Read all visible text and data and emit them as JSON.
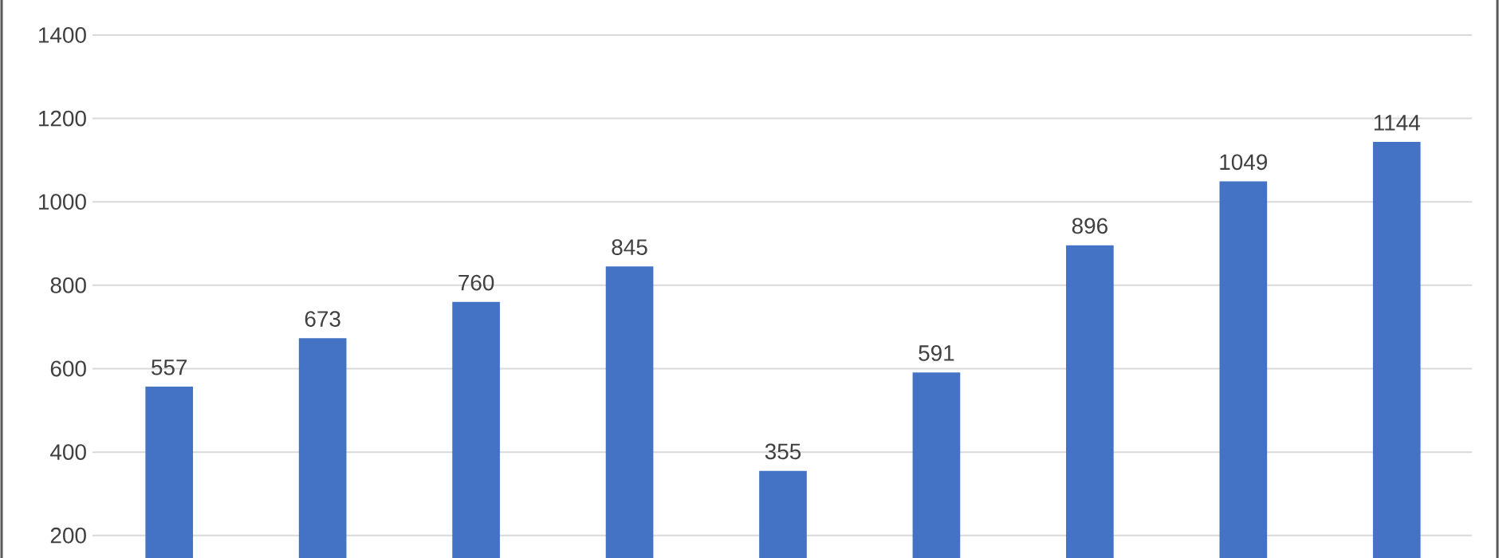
{
  "chart_data": {
    "type": "bar",
    "categories": [
      null,
      null,
      null,
      null,
      null,
      null,
      null,
      null,
      null
    ],
    "values": [
      557,
      673,
      760,
      845,
      355,
      591,
      896,
      1049,
      1144
    ],
    "color": "#4472c4",
    "ylim": [
      146,
      1400
    ],
    "yticks": [
      200,
      400,
      600,
      800,
      1000,
      1200,
      1400
    ],
    "grid": "y",
    "data_labels": true,
    "tick_labels": "y"
  }
}
